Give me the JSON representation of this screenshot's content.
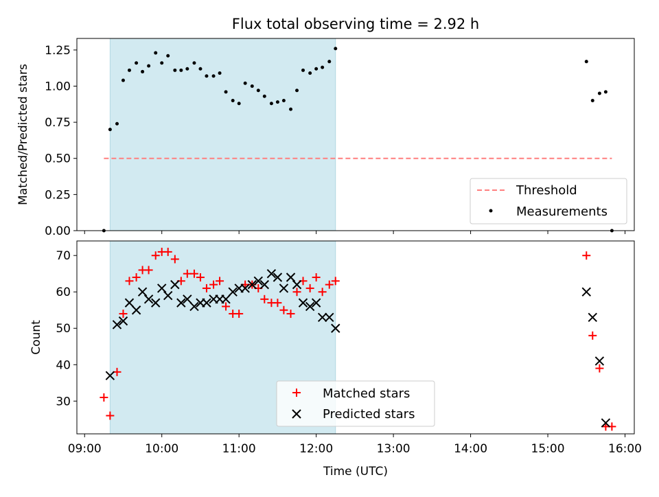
{
  "chart_data": [
    {
      "type": "scatter",
      "title": "Flux total observing time = 2.92 h",
      "xlabel": "",
      "ylabel": "Matched/Predicted stars",
      "ylim": [
        0,
        1.33
      ],
      "xlim": [
        "09:00",
        "16:00"
      ],
      "x_unit_note": "hours UTC as decimal",
      "yticks": [
        "0.00",
        "0.25",
        "0.50",
        "0.75",
        "1.00",
        "1.25"
      ],
      "highlight_span": {
        "from": 9.33,
        "to": 12.25,
        "color": "#add8e6"
      },
      "threshold": {
        "name": "Threshold",
        "value": 0.5,
        "x_from": 9.25,
        "x_to": 15.83,
        "color": "#ff7f7f"
      },
      "legend_position": "lower-right",
      "series": [
        {
          "name": "Measurements",
          "color": "#000000",
          "points": [
            [
              9.25,
              0.0
            ],
            [
              9.33,
              0.7
            ],
            [
              9.42,
              0.74
            ],
            [
              9.5,
              1.04
            ],
            [
              9.58,
              1.11
            ],
            [
              9.67,
              1.16
            ],
            [
              9.75,
              1.1
            ],
            [
              9.83,
              1.14
            ],
            [
              9.92,
              1.23
            ],
            [
              10.0,
              1.16
            ],
            [
              10.08,
              1.21
            ],
            [
              10.17,
              1.11
            ],
            [
              10.25,
              1.11
            ],
            [
              10.33,
              1.12
            ],
            [
              10.42,
              1.16
            ],
            [
              10.5,
              1.12
            ],
            [
              10.58,
              1.07
            ],
            [
              10.67,
              1.07
            ],
            [
              10.75,
              1.09
            ],
            [
              10.83,
              0.96
            ],
            [
              10.92,
              0.9
            ],
            [
              11.0,
              0.88
            ],
            [
              11.08,
              1.02
            ],
            [
              11.17,
              1.0
            ],
            [
              11.25,
              0.97
            ],
            [
              11.33,
              0.93
            ],
            [
              11.42,
              0.88
            ],
            [
              11.5,
              0.89
            ],
            [
              11.58,
              0.9
            ],
            [
              11.67,
              0.84
            ],
            [
              11.75,
              0.97
            ],
            [
              11.83,
              1.11
            ],
            [
              11.92,
              1.09
            ],
            [
              12.0,
              1.12
            ],
            [
              12.08,
              1.13
            ],
            [
              12.17,
              1.17
            ],
            [
              12.25,
              1.26
            ],
            [
              15.5,
              1.17
            ],
            [
              15.58,
              0.9
            ],
            [
              15.67,
              0.95
            ],
            [
              15.75,
              0.96
            ],
            [
              15.83,
              0.0
            ]
          ]
        }
      ]
    },
    {
      "type": "scatter",
      "title": "",
      "xlabel": "Time (UTC)",
      "ylabel": "Count",
      "ylim": [
        21,
        74
      ],
      "xlim": [
        "09:00",
        "16:00"
      ],
      "xticks": [
        "09:00",
        "10:00",
        "11:00",
        "12:00",
        "13:00",
        "14:00",
        "15:00",
        "16:00"
      ],
      "yticks": [
        "30",
        "40",
        "50",
        "60",
        "70"
      ],
      "highlight_span": {
        "from": 9.33,
        "to": 12.25,
        "color": "#add8e6"
      },
      "legend_position": "lower-center",
      "series": [
        {
          "name": "Matched stars",
          "color": "#ff0000",
          "marker": "plus",
          "points": [
            [
              9.25,
              31
            ],
            [
              9.33,
              26
            ],
            [
              9.42,
              38
            ],
            [
              9.5,
              54
            ],
            [
              9.58,
              63
            ],
            [
              9.67,
              64
            ],
            [
              9.75,
              66
            ],
            [
              9.83,
              66
            ],
            [
              9.92,
              70
            ],
            [
              10.0,
              71
            ],
            [
              10.08,
              71
            ],
            [
              10.17,
              69
            ],
            [
              10.25,
              63
            ],
            [
              10.33,
              65
            ],
            [
              10.42,
              65
            ],
            [
              10.5,
              64
            ],
            [
              10.58,
              61
            ],
            [
              10.67,
              62
            ],
            [
              10.75,
              63
            ],
            [
              10.83,
              56
            ],
            [
              10.92,
              54
            ],
            [
              11.0,
              54
            ],
            [
              11.08,
              62
            ],
            [
              11.17,
              62
            ],
            [
              11.25,
              61
            ],
            [
              11.33,
              58
            ],
            [
              11.42,
              57
            ],
            [
              11.5,
              57
            ],
            [
              11.58,
              55
            ],
            [
              11.67,
              54
            ],
            [
              11.75,
              60
            ],
            [
              11.83,
              63
            ],
            [
              11.92,
              61
            ],
            [
              12.0,
              64
            ],
            [
              12.08,
              60
            ],
            [
              12.17,
              62
            ],
            [
              12.25,
              63
            ],
            [
              15.5,
              70
            ],
            [
              15.58,
              48
            ],
            [
              15.67,
              39
            ],
            [
              15.75,
              23
            ],
            [
              15.83,
              23
            ]
          ]
        },
        {
          "name": "Predicted stars",
          "color": "#000000",
          "marker": "x",
          "points": [
            [
              9.33,
              37
            ],
            [
              9.42,
              51
            ],
            [
              9.5,
              52
            ],
            [
              9.58,
              57
            ],
            [
              9.67,
              55
            ],
            [
              9.75,
              60
            ],
            [
              9.83,
              58
            ],
            [
              9.92,
              57
            ],
            [
              10.0,
              61
            ],
            [
              10.08,
              59
            ],
            [
              10.17,
              62
            ],
            [
              10.25,
              57
            ],
            [
              10.33,
              58
            ],
            [
              10.42,
              56
            ],
            [
              10.5,
              57
            ],
            [
              10.58,
              57
            ],
            [
              10.67,
              58
            ],
            [
              10.75,
              58
            ],
            [
              10.83,
              58
            ],
            [
              10.92,
              60
            ],
            [
              11.0,
              61
            ],
            [
              11.08,
              61
            ],
            [
              11.17,
              62
            ],
            [
              11.25,
              63
            ],
            [
              11.33,
              62
            ],
            [
              11.42,
              65
            ],
            [
              11.5,
              64
            ],
            [
              11.58,
              61
            ],
            [
              11.67,
              64
            ],
            [
              11.75,
              62
            ],
            [
              11.83,
              57
            ],
            [
              11.92,
              56
            ],
            [
              12.0,
              57
            ],
            [
              12.08,
              53
            ],
            [
              12.17,
              53
            ],
            [
              12.25,
              50
            ],
            [
              15.5,
              60
            ],
            [
              15.58,
              53
            ],
            [
              15.67,
              41
            ],
            [
              15.75,
              24
            ]
          ]
        }
      ]
    }
  ]
}
